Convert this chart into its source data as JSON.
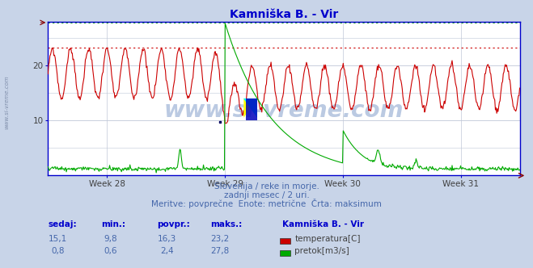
{
  "title": "Kamniška B. - Vir",
  "title_color": "#0000cc",
  "bg_color": "#c8d4e8",
  "plot_bg_color": "#ffffff",
  "grid_color": "#c0c8d8",
  "axis_color": "#0000cc",
  "tick_label_color": "#606060",
  "x_tick_labels": [
    "Week 28",
    "Week 29",
    "Week 30",
    "Week 31"
  ],
  "x_tick_positions": [
    0.125,
    0.375,
    0.625,
    0.875
  ],
  "y_ticks": [
    10,
    20
  ],
  "y_max": 28,
  "y_min": 0,
  "subtitle_lines": [
    "Slovenija / reke in morje.",
    "zadnji mesec / 2 uri.",
    "Meritve: povprečne  Enote: metrične  Črta: maksimum"
  ],
  "subtitle_color": "#4466aa",
  "watermark": "www.si-vreme.com",
  "watermark_color": "#2050a0",
  "watermark_alpha": 0.3,
  "temp_color": "#cc0000",
  "flow_color": "#00aa00",
  "temp_max_line": 23.2,
  "flow_max_line": 27.8,
  "temp_max_color": "#cc0000",
  "flow_max_color": "#00aa00",
  "legend_title": "Kamniška B. - Vir",
  "legend_items": [
    {
      "label": "temperatura[C]",
      "color": "#cc0000"
    },
    {
      "label": "pretok[m3/s]",
      "color": "#00aa00"
    }
  ],
  "stat_headers": [
    "sedaj:",
    "min.:",
    "povpr.:",
    "maks.:"
  ],
  "stat_rows": [
    [
      "15,1",
      "9,8",
      "16,3",
      "23,2"
    ],
    [
      "0,8",
      "0,6",
      "2,4",
      "27,8"
    ]
  ],
  "n_points": 720
}
